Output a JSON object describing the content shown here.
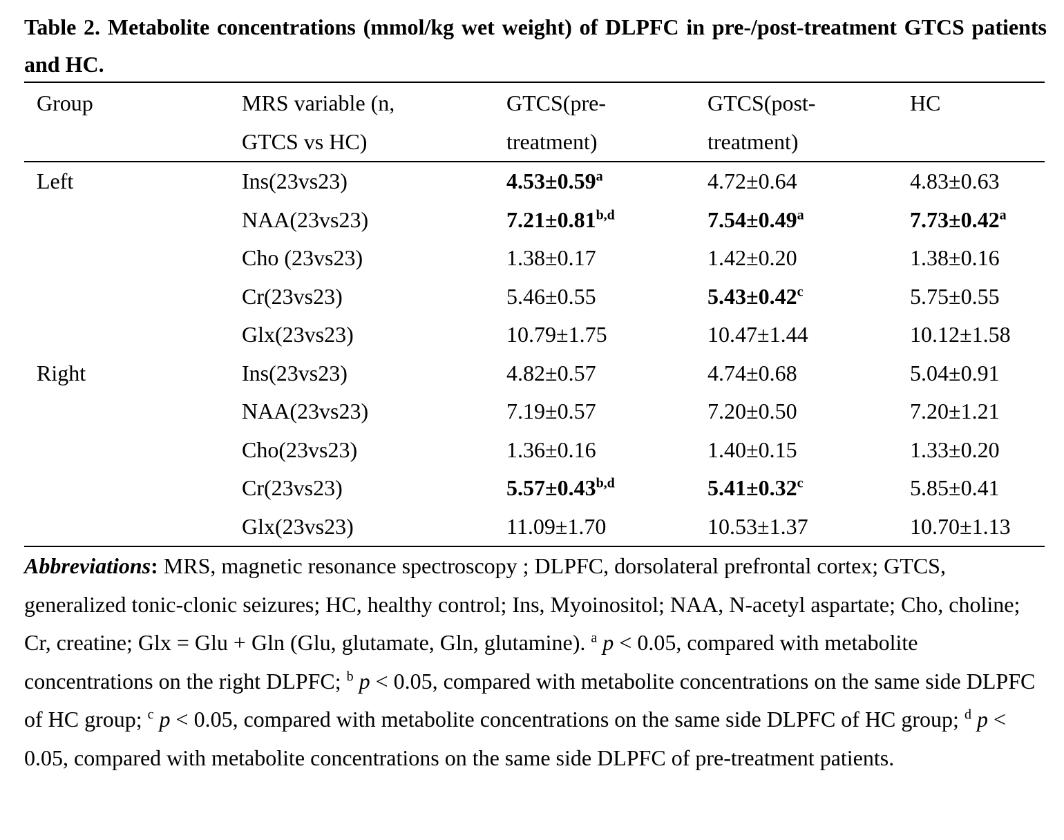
{
  "title": "Table 2. Metabolite concentrations (mmol/kg wet weight) of DLPFC in pre-/post-treatment GTCS patients and HC.",
  "table": {
    "header": [
      "Group",
      "MRS variable (n, GTCS vs HC)",
      "GTCS(pre-treatment)",
      "GTCS(post-treatment)",
      "HC"
    ],
    "groups": [
      {
        "label": "Left",
        "rows": [
          {
            "variable": "Ins(23vs23)",
            "cells": [
              {
                "text": "4.53±0.59",
                "bold": true,
                "sup": "a"
              },
              {
                "text": "4.72±0.64"
              },
              {
                "text": "4.83±0.63"
              }
            ]
          },
          {
            "variable": "NAA(23vs23)",
            "cells": [
              {
                "text": "7.21±0.81",
                "bold": true,
                "sup": "b,d"
              },
              {
                "text": "7.54±0.49",
                "bold": true,
                "sup": "a"
              },
              {
                "text": "7.73±0.42",
                "bold": true,
                "sup": "a"
              }
            ]
          },
          {
            "variable": "Cho (23vs23)",
            "cells": [
              {
                "text": "1.38±0.17"
              },
              {
                "text": "1.42±0.20"
              },
              {
                "text": "1.38±0.16"
              }
            ]
          },
          {
            "variable": "Cr(23vs23)",
            "cells": [
              {
                "text": "5.46±0.55"
              },
              {
                "text": "5.43±0.42",
                "bold": true,
                "sup": "c"
              },
              {
                "text": "5.75±0.55"
              }
            ]
          },
          {
            "variable": "Glx(23vs23)",
            "cells": [
              {
                "text": "10.79±1.75"
              },
              {
                "text": "10.47±1.44"
              },
              {
                "text": "10.12±1.58"
              }
            ]
          }
        ]
      },
      {
        "label": "Right",
        "rows": [
          {
            "variable": "Ins(23vs23)",
            "cells": [
              {
                "text": "4.82±0.57"
              },
              {
                "text": "4.74±0.68"
              },
              {
                "text": "5.04±0.91"
              }
            ]
          },
          {
            "variable": "NAA(23vs23)",
            "cells": [
              {
                "text": "7.19±0.57"
              },
              {
                "text": "7.20±0.50"
              },
              {
                "text": "7.20±1.21"
              }
            ]
          },
          {
            "variable": "Cho(23vs23)",
            "cells": [
              {
                "text": "1.36±0.16"
              },
              {
                "text": "1.40±0.15"
              },
              {
                "text": "1.33±0.20"
              }
            ]
          },
          {
            "variable": "Cr(23vs23)",
            "cells": [
              {
                "text": "5.57±0.43",
                "bold": true,
                "sup": "b,d"
              },
              {
                "text": "5.41±0.32",
                "bold": true,
                "sup": "c"
              },
              {
                "text": "5.85±0.41"
              }
            ]
          },
          {
            "variable": "Glx(23vs23)",
            "cells": [
              {
                "text": "11.09±1.70"
              },
              {
                "text": "10.53±1.37"
              },
              {
                "text": "10.70±1.13"
              }
            ]
          }
        ]
      }
    ]
  },
  "footnote": [
    {
      "text": "Abbreviations",
      "style": "bold-italic"
    },
    {
      "text": ":",
      "style": "bold"
    },
    {
      "text": " MRS, magnetic resonance spectroscopy ; DLPFC, dorsolateral prefrontal cortex; GTCS, generalized tonic-clonic seizures; HC, healthy control; Ins, Myoinositol; NAA, N-acetyl aspartate; Cho, choline; Cr, creatine; Glx = Glu + Gln (Glu, glutamate, Gln, glutamine). "
    },
    {
      "text": "a",
      "style": "sup"
    },
    {
      "text": " p",
      "style": "italic"
    },
    {
      "text": " < 0.05, compared with metabolite concentrations on the right DLPFC; "
    },
    {
      "text": "b",
      "style": "sup"
    },
    {
      "text": " p",
      "style": "italic"
    },
    {
      "text": " < 0.05, compared with metabolite concentrations on the same side DLPFC of HC group; "
    },
    {
      "text": "c",
      "style": "sup"
    },
    {
      "text": " p",
      "style": "italic"
    },
    {
      "text": " < 0.05, compared with metabolite concentrations on the same side DLPFC of HC group; "
    },
    {
      "text": "d",
      "style": "sup"
    },
    {
      "text": " p",
      "style": "italic"
    },
    {
      "text": " < 0.05, compared with metabolite concentrations on the same side DLPFC of pre-treatment patients."
    }
  ]
}
